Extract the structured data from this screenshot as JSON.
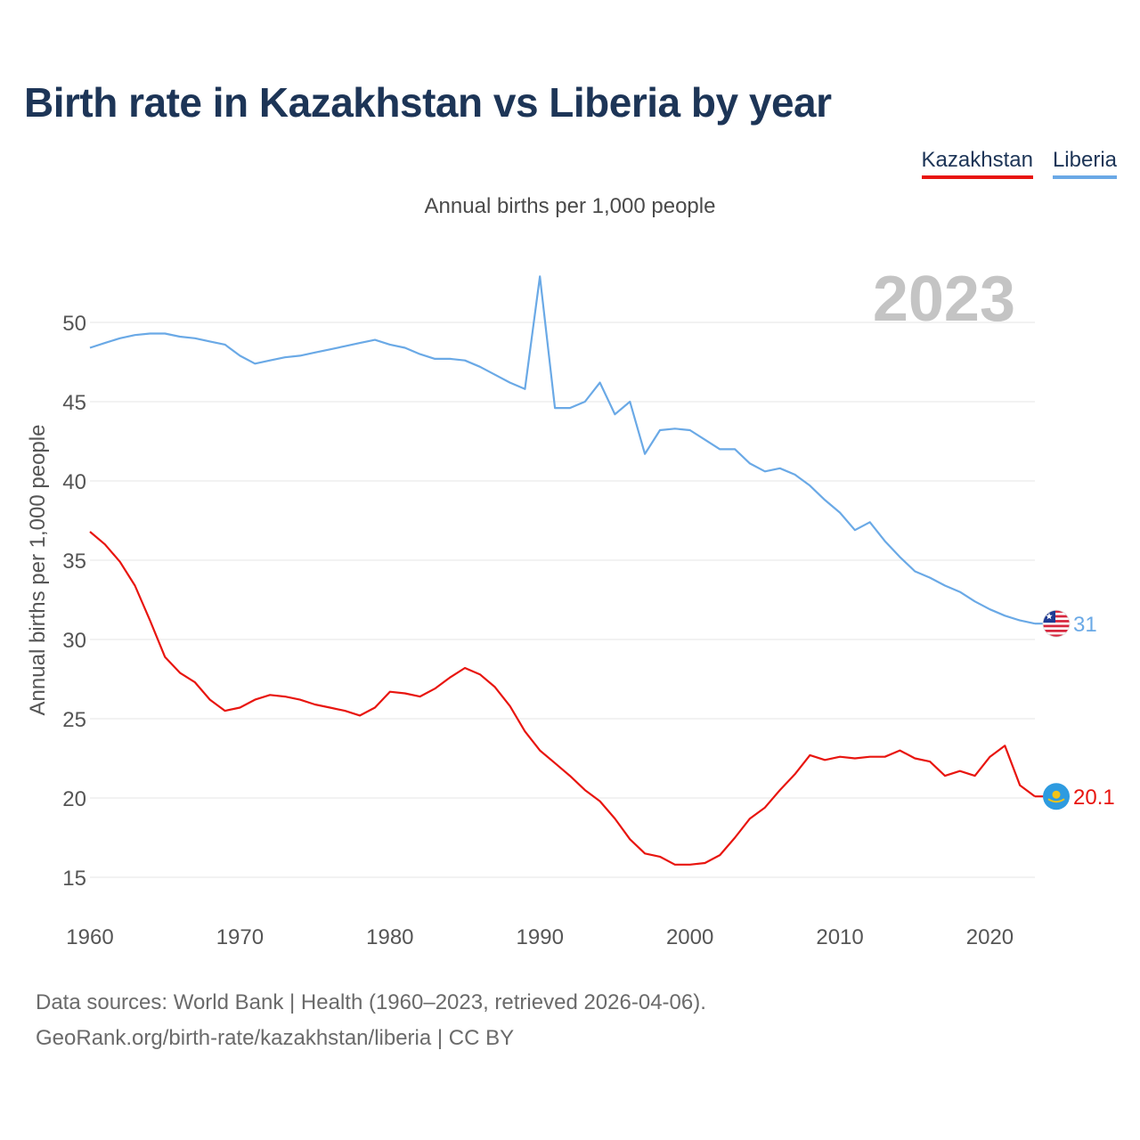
{
  "title": "Birth rate in Kazakhstan vs Liberia by year",
  "subtitle": "Annual births per 1,000 people",
  "legend": [
    {
      "name": "Kazakhstan",
      "color": "#e8150f"
    },
    {
      "name": "Liberia",
      "color": "#6aa9e6"
    }
  ],
  "year_label": "2023",
  "footer": {
    "line1": "Data sources: World Bank | Health (1960–2023, retrieved 2026-04-06).",
    "line2": "GeoRank.org/birth-rate/kazakhstan/liberia | CC BY"
  },
  "chart_data": {
    "type": "line",
    "title": "Birth rate in Kazakhstan vs Liberia by year",
    "xlabel": "",
    "ylabel": "Annual births per 1,000 people",
    "xlim": [
      1960,
      2023
    ],
    "ylim": [
      13.5,
      53
    ],
    "grid": true,
    "x_ticks": [
      "1960",
      "1970",
      "1980",
      "1990",
      "2000",
      "2010",
      "2020"
    ],
    "y_ticks": [
      "15",
      "20",
      "25",
      "30",
      "35",
      "40",
      "45",
      "50"
    ],
    "x": [
      1960,
      1961,
      1962,
      1963,
      1964,
      1965,
      1966,
      1967,
      1968,
      1969,
      1970,
      1971,
      1972,
      1973,
      1974,
      1975,
      1976,
      1977,
      1978,
      1979,
      1980,
      1981,
      1982,
      1983,
      1984,
      1985,
      1986,
      1987,
      1988,
      1989,
      1990,
      1991,
      1992,
      1993,
      1994,
      1995,
      1996,
      1997,
      1998,
      1999,
      2000,
      2001,
      2002,
      2003,
      2004,
      2005,
      2006,
      2007,
      2008,
      2009,
      2010,
      2011,
      2012,
      2013,
      2014,
      2015,
      2016,
      2017,
      2018,
      2019,
      2020,
      2021,
      2022,
      2023
    ],
    "series": [
      {
        "name": "Kazakhstan",
        "color": "#e8150f",
        "end_label": "20.1",
        "values": [
          36.8,
          36.0,
          34.9,
          33.4,
          31.2,
          28.9,
          27.9,
          27.3,
          26.2,
          25.5,
          25.7,
          26.2,
          26.5,
          26.4,
          26.2,
          25.9,
          25.7,
          25.5,
          25.2,
          25.7,
          26.7,
          26.6,
          26.4,
          26.9,
          27.6,
          28.2,
          27.8,
          27.0,
          25.8,
          24.2,
          23.0,
          22.2,
          21.4,
          20.5,
          19.8,
          18.7,
          17.4,
          16.5,
          16.3,
          15.8,
          15.8,
          15.9,
          16.4,
          17.5,
          18.7,
          19.4,
          20.5,
          21.5,
          22.7,
          22.4,
          22.6,
          22.5,
          22.6,
          22.6,
          23.0,
          22.5,
          22.3,
          21.4,
          21.7,
          21.4,
          22.6,
          23.3,
          20.8,
          20.1
        ]
      },
      {
        "name": "Liberia",
        "color": "#6aa9e6",
        "end_label": "31",
        "values": [
          48.4,
          48.7,
          49.0,
          49.2,
          49.3,
          49.3,
          49.1,
          49.0,
          48.8,
          48.6,
          47.9,
          47.4,
          47.6,
          47.8,
          47.9,
          48.1,
          48.3,
          48.5,
          48.7,
          48.9,
          48.6,
          48.4,
          48.0,
          47.7,
          47.7,
          47.6,
          47.2,
          46.7,
          46.2,
          45.8,
          52.9,
          44.6,
          44.6,
          45.0,
          46.2,
          44.2,
          45.0,
          41.7,
          43.2,
          43.3,
          43.2,
          42.6,
          42.0,
          42.0,
          41.1,
          40.6,
          40.8,
          40.4,
          39.7,
          38.8,
          38.0,
          36.9,
          37.4,
          36.2,
          35.2,
          34.3,
          33.9,
          33.4,
          33.0,
          32.4,
          31.9,
          31.5,
          31.2,
          31.0
        ]
      }
    ]
  }
}
